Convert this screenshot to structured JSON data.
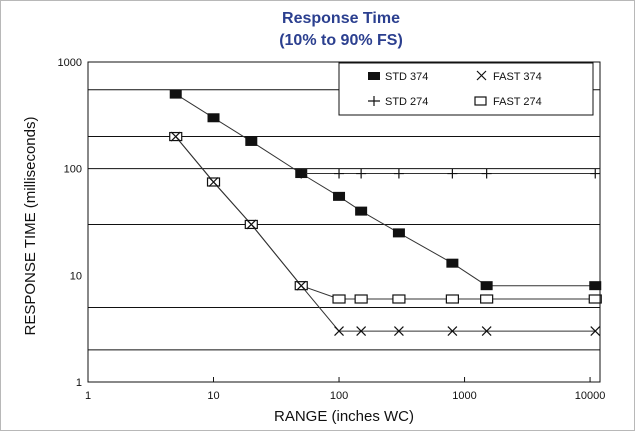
{
  "chart_data": {
    "type": "line",
    "title": "Response Time",
    "subtitle": "(10% to 90% FS)",
    "xlabel": "RANGE (inches WC)",
    "ylabel": "RESPONSE TIME (milliseconds)",
    "xscale": "log",
    "yscale": "log",
    "xlim": [
      1,
      12000
    ],
    "ylim": [
      1,
      1000
    ],
    "x_ticks": [
      "1",
      "10",
      "100",
      "1000",
      "10000"
    ],
    "y_ticks": [
      "1",
      "10",
      "100",
      "1000"
    ],
    "grid": "horizontal",
    "horizontal_gridlines": [
      550,
      200,
      100,
      30,
      5,
      2
    ],
    "legend_position": "top-right",
    "legend": [
      {
        "label": "STD 374",
        "marker": "filled-square"
      },
      {
        "label": "FAST 374",
        "marker": "x"
      },
      {
        "label": "STD 274",
        "marker": "plus"
      },
      {
        "label": "FAST 274",
        "marker": "open-square"
      }
    ],
    "series": [
      {
        "name": "STD 374",
        "marker": "filled-square",
        "x": [
          5,
          10,
          20,
          50,
          100,
          150,
          300,
          800,
          1500,
          11000
        ],
        "y": [
          500,
          300,
          180,
          90,
          55,
          40,
          25,
          13,
          8,
          8
        ]
      },
      {
        "name": "STD 274",
        "marker": "plus",
        "x": [
          50,
          100,
          150,
          300,
          800,
          1500,
          11000
        ],
        "y": [
          90,
          90,
          90,
          90,
          90,
          90,
          90
        ]
      },
      {
        "name": "FAST 274",
        "marker": "open-square",
        "x": [
          5,
          10,
          20,
          50,
          100,
          150,
          300,
          800,
          1500,
          11000
        ],
        "y": [
          200,
          75,
          30,
          8,
          6,
          6,
          6,
          6,
          6,
          6
        ]
      },
      {
        "name": "FAST 374",
        "marker": "x",
        "x": [
          5,
          10,
          20,
          50,
          100,
          150,
          300,
          800,
          1500,
          11000
        ],
        "y": [
          200,
          75,
          30,
          8,
          3,
          3,
          3,
          3,
          3,
          3
        ]
      }
    ]
  }
}
